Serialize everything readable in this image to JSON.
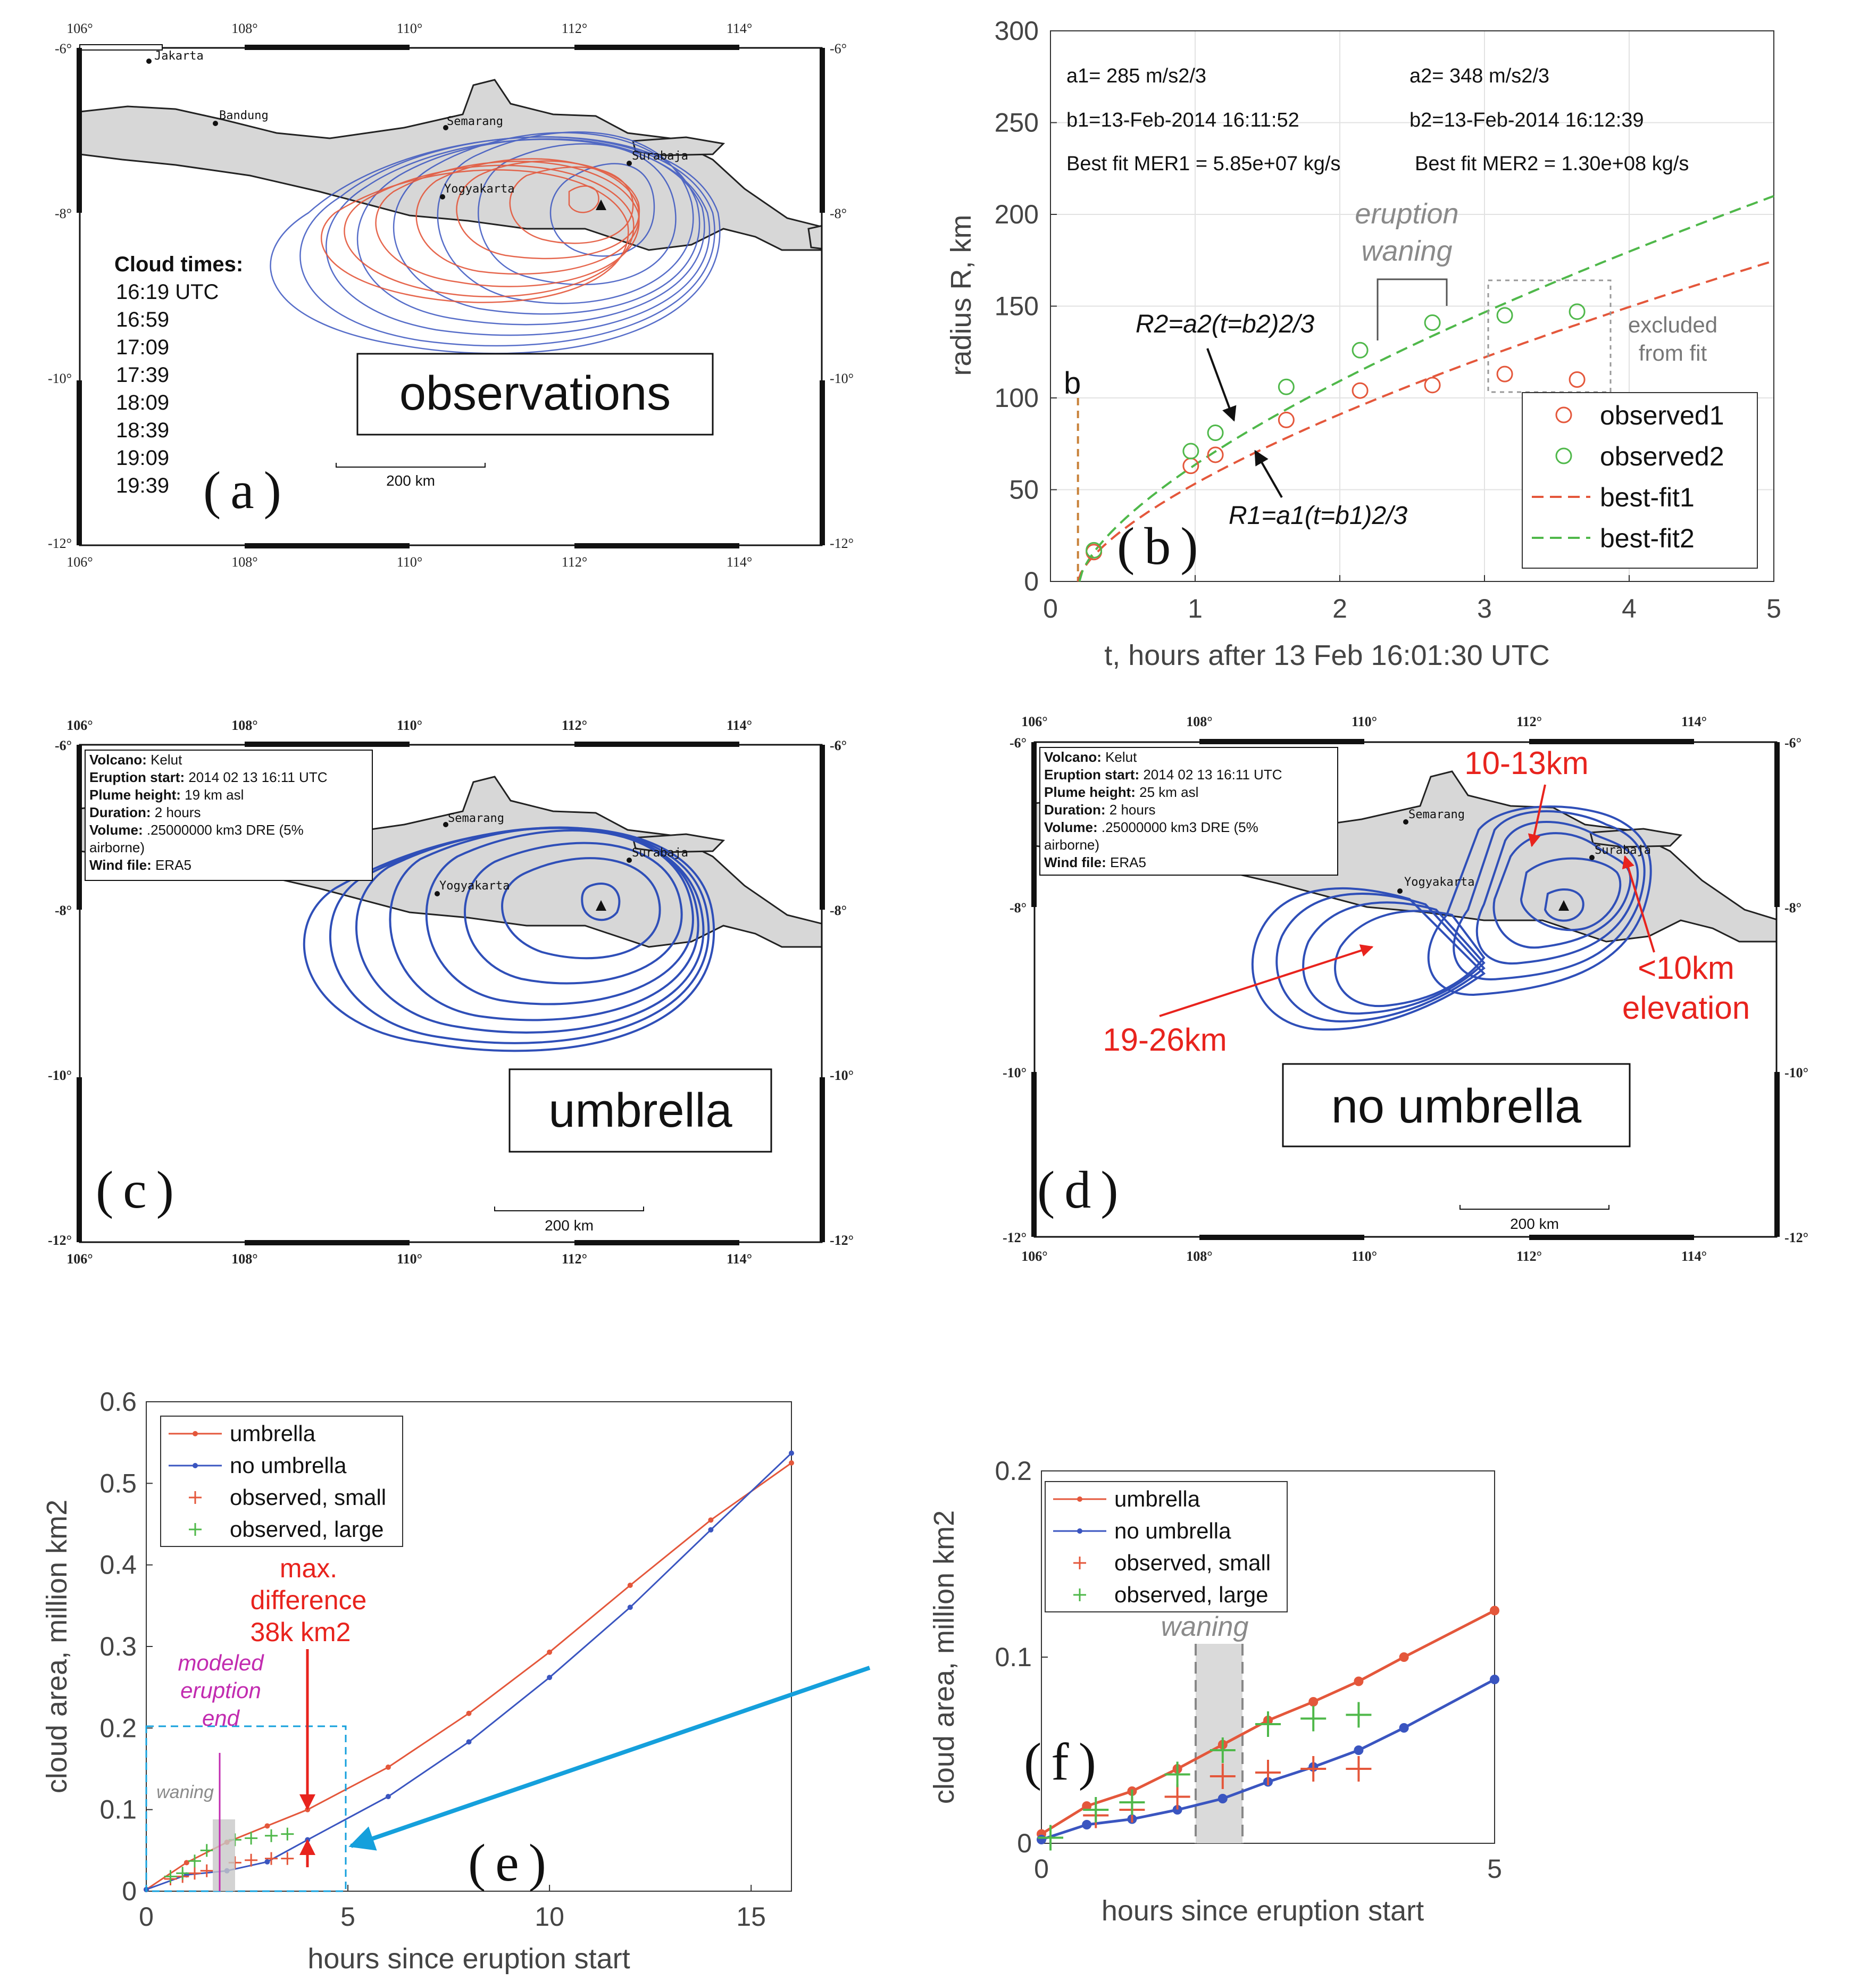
{
  "colors": {
    "red": "#e4573b",
    "green": "#4fb84a",
    "blue": "#3a55c0",
    "cyan": "#15a0dc",
    "magenta": "#c22bb0",
    "gray": "#8a8a8a",
    "darkred": "#e8231d"
  },
  "maps": {
    "lon_ticks": [
      "106°",
      "108°",
      "110°",
      "112°",
      "114°"
    ],
    "lat_ticks": [
      "-6°",
      "-8°",
      "-10°",
      "-12°"
    ],
    "cities": [
      "Jakarta",
      "Bandung",
      "Semarang",
      "Yogyakarta",
      "Surabaja"
    ],
    "scale_label": "200 km"
  },
  "panel_a": {
    "label": "(a)",
    "title_box": "observations",
    "cloud_times_title": "Cloud times:",
    "cloud_times": [
      "16:19 UTC",
      "16:59",
      "17:09",
      "17:39",
      "18:09",
      "18:39",
      "19:09",
      "19:39"
    ]
  },
  "panel_c": {
    "label": "(c)",
    "title_box": "umbrella",
    "info": [
      {
        "k": "Volcano:",
        "v": "Kelut"
      },
      {
        "k": "Eruption start:",
        "v": "2014 02 13 16:11 UTC"
      },
      {
        "k": "Plume height:",
        "v": "19 km asl"
      },
      {
        "k": "Duration:",
        "v": "2 hours"
      },
      {
        "k": "Volume:",
        "v": ".25000000 km3 DRE (5%"
      },
      {
        "k": "",
        "v": "airborne)"
      },
      {
        "k": "Wind file:",
        "v": "ERA5"
      }
    ]
  },
  "panel_d": {
    "label": "(d)",
    "title_box": "no umbrella",
    "info": [
      {
        "k": "Volcano:",
        "v": "Kelut"
      },
      {
        "k": "Eruption start:",
        "v": "2014 02 13 16:11 UTC"
      },
      {
        "k": "Plume height:",
        "v": "25 km asl"
      },
      {
        "k": "Duration:",
        "v": "2 hours"
      },
      {
        "k": "Volume:",
        "v": ".25000000 km3 DRE (5%"
      },
      {
        "k": "",
        "v": "airborne)"
      },
      {
        "k": "Wind file:",
        "v": "ERA5"
      }
    ],
    "annotations": [
      "10-13km",
      "19-26km",
      "<10km",
      "elevation"
    ]
  },
  "chart_data": [
    {
      "id": "b",
      "type": "scatter",
      "panel_label": "(b)",
      "xlabel": "t, hours after 13 Feb 16:01:30 UTC",
      "ylabel": "radius R, km",
      "xlim": [
        0,
        5
      ],
      "ylim": [
        0,
        300
      ],
      "xticks": [
        0,
        1,
        2,
        3,
        4,
        5
      ],
      "yticks": [
        0,
        50,
        100,
        150,
        200,
        250,
        300
      ],
      "texts": {
        "a1": "a1= 285 m/s2/3",
        "a2": "a2= 348 m/s2/3",
        "b1": "b1=13-Feb-2014 16:11:52",
        "b2": "b2=13-Feb-2014 16:12:39",
        "mer1": "Best fit MER1 = 5.85e+07 kg/s",
        "mer2": "Best fit MER2 = 1.30e+08 kg/s",
        "eq2": "R2=a2(t=b2)2/3",
        "eq1": "R1=a1(t=b1)2/3",
        "b_mark": "b",
        "waning": [
          "eruption",
          "waning"
        ],
        "excluded": [
          "excluded",
          "from fit"
        ]
      },
      "b_value": 0.19,
      "series": [
        {
          "name": "observed1",
          "style": "circle",
          "color": "#e4573b",
          "x": [
            0.3,
            0.97,
            1.14,
            1.63,
            2.14,
            2.64
          ],
          "y": [
            16,
            63,
            69,
            88,
            104,
            107
          ]
        },
        {
          "name": "observed2",
          "style": "circle",
          "color": "#4fb84a",
          "x": [
            0.3,
            0.97,
            1.14,
            1.63,
            2.14,
            2.64
          ],
          "y": [
            17,
            71,
            81,
            106,
            126,
            141
          ]
        },
        {
          "name": "best-fit1",
          "style": "dashed",
          "color": "#e4573b",
          "a": 61.3,
          "b": 0.19
        },
        {
          "name": "best-fit2",
          "style": "dashed",
          "color": "#4fb84a",
          "a": 73.8,
          "b": 0.2
        }
      ],
      "excluded_points": {
        "observed1": {
          "x": [
            3.14,
            3.64
          ],
          "y": [
            113,
            110
          ]
        },
        "observed2": {
          "x": [
            3.14,
            3.64
          ],
          "y": [
            145,
            147
          ]
        }
      }
    },
    {
      "id": "e",
      "type": "line",
      "panel_label": "(e)",
      "xlabel": "hours since eruption start",
      "ylabel": "cloud area, million km2",
      "xlim": [
        0,
        16
      ],
      "ylim": [
        0,
        0.6
      ],
      "xticks": [
        0,
        5,
        10,
        15
      ],
      "yticks": [
        0,
        0.1,
        0.2,
        0.3,
        0.4,
        0.5,
        0.6
      ],
      "series": [
        {
          "name": "umbrella",
          "style": "line-dot",
          "color": "#e4573b",
          "x": [
            0,
            1,
            2,
            3,
            4,
            6,
            8,
            10,
            12,
            14,
            16
          ],
          "y": [
            0.002,
            0.035,
            0.06,
            0.08,
            0.1,
            0.152,
            0.218,
            0.293,
            0.375,
            0.455,
            0.525
          ]
        },
        {
          "name": "no umbrella",
          "style": "line-dot",
          "color": "#3a55c0",
          "x": [
            0,
            1,
            2,
            3,
            4,
            6,
            8,
            10,
            12,
            14,
            16
          ],
          "y": [
            0.002,
            0.02,
            0.025,
            0.036,
            0.063,
            0.116,
            0.183,
            0.262,
            0.348,
            0.443,
            0.537
          ]
        },
        {
          "name": "observed, small",
          "style": "plus",
          "color": "#e4573b",
          "x": [
            0.6,
            0.9,
            1.2,
            1.5,
            2.2,
            2.6,
            3.1,
            3.5
          ],
          "y": [
            0.015,
            0.018,
            0.022,
            0.025,
            0.035,
            0.038,
            0.04,
            0.04
          ]
        },
        {
          "name": "observed, large",
          "style": "plus",
          "color": "#4fb84a",
          "x": [
            0.6,
            0.9,
            1.2,
            1.5,
            2.2,
            2.6,
            3.1,
            3.5
          ],
          "y": [
            0.018,
            0.022,
            0.037,
            0.05,
            0.063,
            0.065,
            0.068,
            0.07
          ]
        }
      ],
      "annotations": {
        "max_diff": [
          "max.",
          "difference",
          "38k km2"
        ],
        "modeled_end": [
          "modeled",
          "eruption",
          "end"
        ],
        "waning": "waning"
      }
    },
    {
      "id": "f",
      "type": "line",
      "panel_label": "(f)",
      "xlabel": "hours since eruption start",
      "ylabel": "cloud area, million km2",
      "xlim": [
        0,
        5
      ],
      "ylim": [
        0,
        0.2
      ],
      "xticks": [
        0,
        5
      ],
      "yticks": [
        0,
        0.1,
        0.2
      ],
      "series": [
        {
          "name": "umbrella",
          "style": "line-dot",
          "color": "#e4573b",
          "x": [
            0,
            0.5,
            1,
            1.5,
            2,
            2.5,
            3,
            3.5,
            4,
            5
          ],
          "y": [
            0.005,
            0.02,
            0.028,
            0.04,
            0.053,
            0.066,
            0.076,
            0.087,
            0.1,
            0.125
          ]
        },
        {
          "name": "no umbrella",
          "style": "line-dot",
          "color": "#3a55c0",
          "x": [
            0,
            0.5,
            1,
            1.5,
            2,
            2.5,
            3,
            3.5,
            4,
            5
          ],
          "y": [
            0.002,
            0.01,
            0.013,
            0.018,
            0.024,
            0.033,
            0.041,
            0.05,
            0.062,
            0.088
          ]
        },
        {
          "name": "observed, small",
          "style": "plus",
          "color": "#e4573b",
          "x": [
            0.6,
            1.0,
            1.5,
            2.0,
            2.5,
            3.0,
            3.5
          ],
          "y": [
            0.015,
            0.018,
            0.025,
            0.036,
            0.038,
            0.04,
            0.04
          ]
        },
        {
          "name": "observed, large",
          "style": "plus",
          "color": "#4fb84a",
          "x": [
            0.1,
            0.6,
            1.0,
            1.5,
            2.0,
            2.5,
            3.0,
            3.5
          ],
          "y": [
            0.003,
            0.018,
            0.022,
            0.037,
            0.05,
            0.064,
            0.067,
            0.069
          ]
        }
      ],
      "annotations": {
        "waning": "waning"
      }
    }
  ]
}
